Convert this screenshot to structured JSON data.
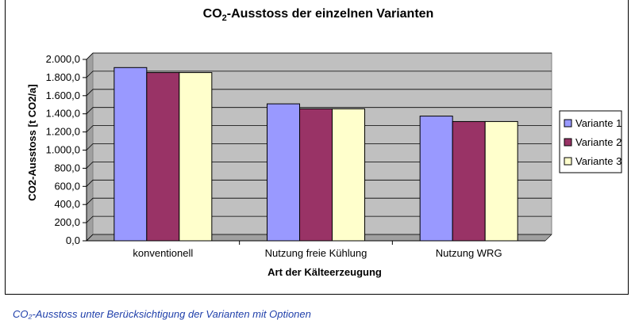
{
  "chart_data": {
    "type": "bar",
    "title_main": "CO",
    "title_sub": "2",
    "title_rest": "-Ausstoss der einzelnen Varianten",
    "xlabel": "Art der Kälteerzeugung",
    "ylabel": "CO2-Ausstoss [t CO2/a]",
    "categories": [
      "konventionell",
      "Nutzung freie Kühlung",
      "Nutzung WRG"
    ],
    "ylim": [
      0,
      2000
    ],
    "ytick_step": 200,
    "ytick_labels": [
      "0,0",
      "200,0",
      "400,0",
      "600,0",
      "800,0",
      "1.000,0",
      "1.200,0",
      "1.400,0",
      "1.600,0",
      "1.800,0",
      "2.000,0"
    ],
    "grid": true,
    "legend_position": "right",
    "series": [
      {
        "name": "Variante 1",
        "color": "#9999ff",
        "values": [
          1910,
          1510,
          1375
        ]
      },
      {
        "name": "Variante 2",
        "color": "#993366",
        "values": [
          1855,
          1455,
          1315
        ]
      },
      {
        "name": "Variante 3",
        "color": "#ffffcc",
        "values": [
          1855,
          1455,
          1315
        ]
      }
    ],
    "plot_background": "#c0c0c0"
  },
  "caption": {
    "text": "CO₂-Ausstoss unter Berücksichtigung der Varianten mit Optionen"
  }
}
